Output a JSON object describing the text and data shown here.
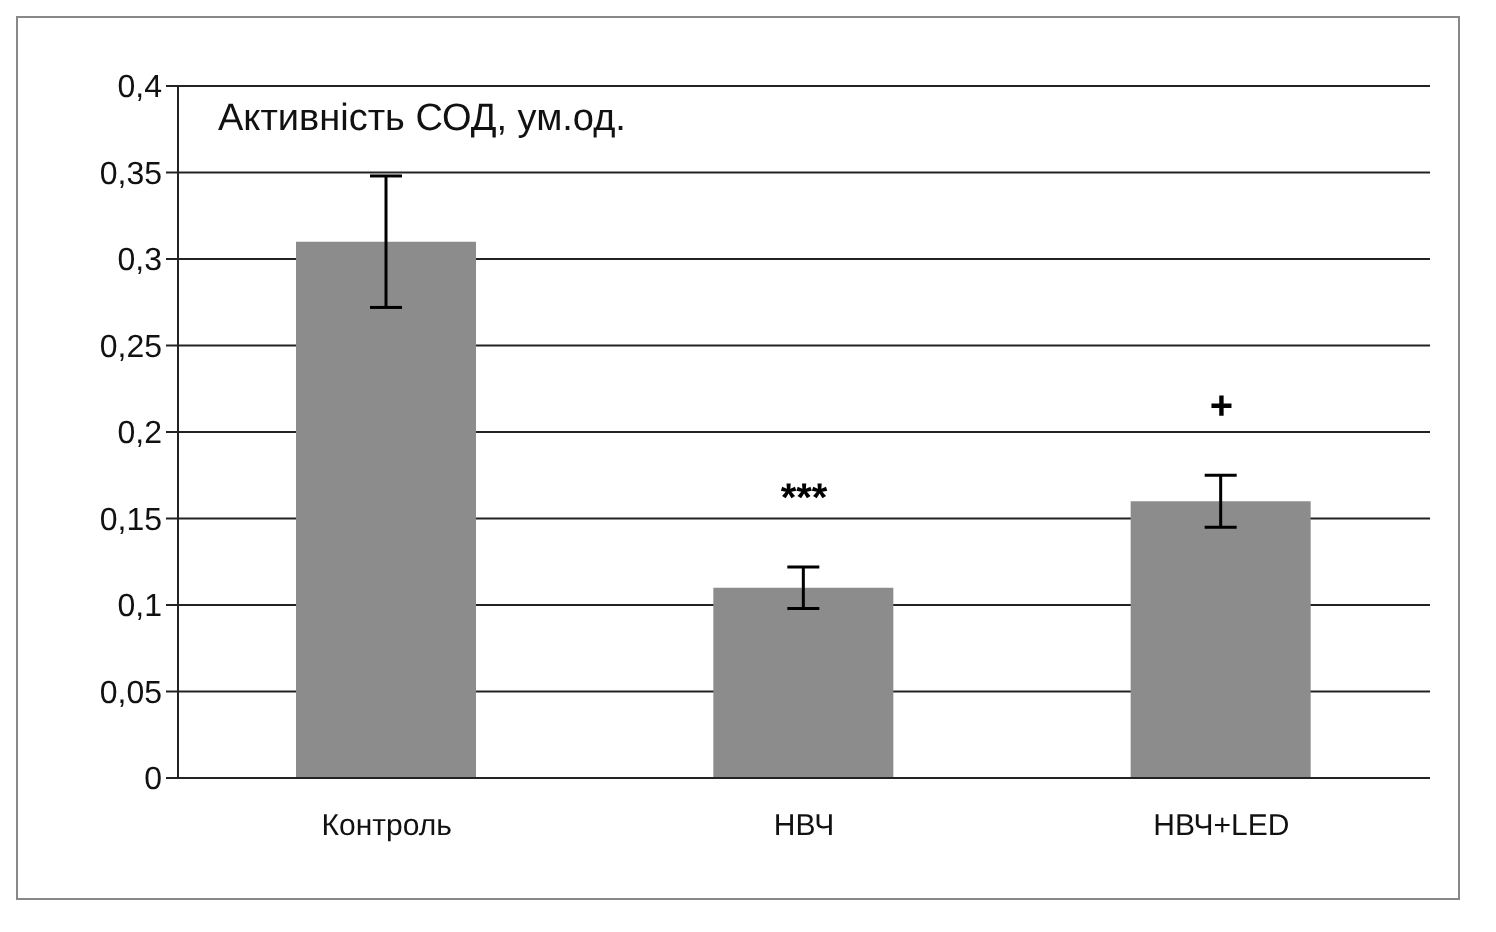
{
  "chart_data": {
    "type": "bar",
    "title": "Активність СОД, ум.од.",
    "categories": [
      "Контроль",
      "НВЧ",
      "НВЧ+LED"
    ],
    "values": [
      0.31,
      0.11,
      0.16
    ],
    "color": "#8c8c8c",
    "errors": [
      0.038,
      0.012,
      0.015
    ],
    "ylim": [
      0,
      0.4
    ],
    "yticks": [
      {
        "value": 0,
        "label": "0"
      },
      {
        "value": 0.05,
        "label": "0,05"
      },
      {
        "value": 0.1,
        "label": "0,1"
      },
      {
        "value": 0.15,
        "label": "0,15"
      },
      {
        "value": 0.2,
        "label": "0,2"
      },
      {
        "value": 0.25,
        "label": "0,25"
      },
      {
        "value": 0.3,
        "label": "0,3"
      },
      {
        "value": 0.35,
        "label": "0,35"
      },
      {
        "value": 0.4,
        "label": "0,4"
      }
    ],
    "grid": "y",
    "annotations": [
      "***",
      "+"
    ]
  }
}
